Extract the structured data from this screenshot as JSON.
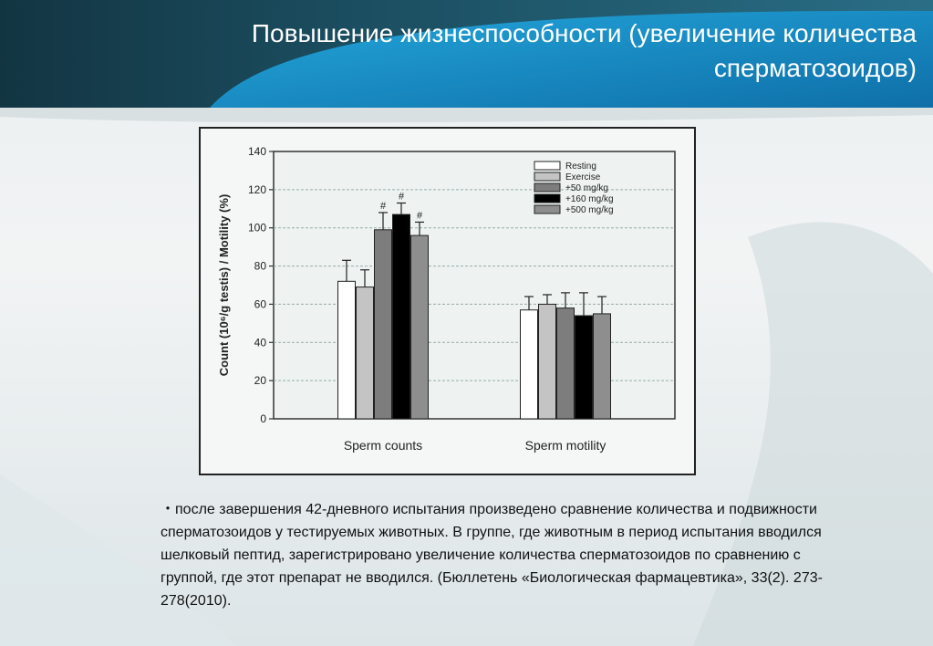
{
  "slide": {
    "title": "Повышение жизнеспособности (увеличение количества сперматозоидов)",
    "caption": "・после завершения 42-дневного испытания произведено сравнение количества и подвижности сперматозоидов у тестируемых животных. В группе, где животным в период испытания вводился шелковый пептид, зарегистрировано увеличение количества сперматозоидов по сравнению с группой, где этот препарат не вводился. (Бюллетень «Биологическая фармацевтика», 33(2). 273-278(2010)."
  },
  "colors": {
    "header_dark": "#173c4a",
    "header_blue": "#1a8fc4",
    "resting": "#ffffff",
    "exercise": "#c4c4c4",
    "dose50": "#7d7d7d",
    "dose160": "#000000",
    "dose500": "#8e8e8e"
  },
  "chart_data": {
    "type": "bar",
    "title": "",
    "xlabel": "",
    "ylabel": "Count (10⁶/g testis) / Motility (%)",
    "ylim": [
      0,
      140
    ],
    "yticks": [
      0,
      20,
      40,
      60,
      80,
      100,
      120,
      140
    ],
    "grid": true,
    "legend_position": "top-right",
    "categories": [
      "Sperm counts",
      "Sperm motility"
    ],
    "series": [
      {
        "name": "Resting",
        "values": [
          72,
          57
        ],
        "errors": [
          11,
          7
        ],
        "color": "#ffffff"
      },
      {
        "name": "Exercise",
        "values": [
          69,
          60
        ],
        "errors": [
          9,
          5
        ],
        "color": "#c4c4c4"
      },
      {
        "name": "+50 mg/kg",
        "values": [
          99,
          58
        ],
        "errors": [
          9,
          8
        ],
        "color": "#7d7d7d",
        "annotation": "#"
      },
      {
        "name": "+160 mg/kg",
        "values": [
          107,
          54
        ],
        "errors": [
          6,
          12
        ],
        "color": "#000000",
        "annotation": "#"
      },
      {
        "name": "+500 mg/kg",
        "values": [
          96,
          55
        ],
        "errors": [
          7,
          9
        ],
        "color": "#8e8e8e",
        "annotation": "#"
      }
    ]
  }
}
